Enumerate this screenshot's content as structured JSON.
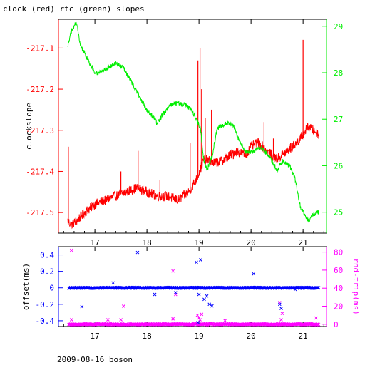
{
  "title": "clock (red) rtc (green) slopes",
  "footer": "2009-08-16 boson",
  "colors": {
    "red": "#ff0000",
    "green": "#00ee00",
    "blue": "#0000ff",
    "magenta": "#ff00ff",
    "axis": "#000000"
  },
  "chart_data": [
    {
      "type": "line",
      "ylabel": "clockslope",
      "xlim": [
        16.3,
        21.45
      ],
      "x_ticks": [
        17,
        18,
        19,
        20,
        21
      ],
      "x_tick_labels": [
        "17",
        "18",
        "19",
        "20",
        "21"
      ],
      "left_axis": {
        "ylim": [
          -217.55,
          -217.03
        ],
        "ticks": [
          -217.1,
          -217.2,
          -217.3,
          -217.4,
          -217.5
        ],
        "tick_labels": [
          "-217.1",
          "-217.2",
          "-217.3",
          "-217.4",
          "-217.5"
        ]
      },
      "right_axis": {
        "ylim": [
          24.55,
          29.15
        ],
        "ticks": [
          25,
          26,
          27,
          28,
          29
        ],
        "tick_labels": [
          "25",
          "26",
          "27",
          "28",
          "29"
        ]
      },
      "series": [
        {
          "name": "clock",
          "color": "#ff0000",
          "axis": "left",
          "x": [
            16.48,
            16.55,
            16.65,
            16.8,
            17.0,
            17.2,
            17.4,
            17.6,
            17.8,
            18.0,
            18.2,
            18.4,
            18.6,
            18.8,
            18.95,
            19.1,
            19.3,
            19.5,
            19.7,
            19.9,
            20.0,
            20.15,
            20.3,
            20.5,
            20.6,
            20.8,
            20.95,
            21.1,
            21.2,
            21.3
          ],
          "y": [
            -217.52,
            -217.53,
            -217.52,
            -217.5,
            -217.48,
            -217.47,
            -217.46,
            -217.45,
            -217.44,
            -217.45,
            -217.46,
            -217.46,
            -217.47,
            -217.45,
            -217.42,
            -217.37,
            -217.38,
            -217.37,
            -217.35,
            -217.36,
            -217.34,
            -217.33,
            -217.35,
            -217.37,
            -217.36,
            -217.34,
            -217.32,
            -217.29,
            -217.3,
            -217.31
          ],
          "spikes": [
            {
              "x": 16.49,
              "y": -217.34
            },
            {
              "x": 17.5,
              "y": -217.4
            },
            {
              "x": 17.83,
              "y": -217.35
            },
            {
              "x": 18.25,
              "y": -217.42
            },
            {
              "x": 18.83,
              "y": -217.33
            },
            {
              "x": 18.98,
              "y": -217.13
            },
            {
              "x": 19.02,
              "y": -217.1
            },
            {
              "x": 19.05,
              "y": -217.2
            },
            {
              "x": 19.12,
              "y": -217.27
            },
            {
              "x": 19.24,
              "y": -217.25
            },
            {
              "x": 19.66,
              "y": -217.37
            },
            {
              "x": 20.25,
              "y": -217.28
            },
            {
              "x": 20.43,
              "y": -217.32
            },
            {
              "x": 20.76,
              "y": -217.33
            },
            {
              "x": 21.0,
              "y": -217.08
            }
          ]
        },
        {
          "name": "rtc",
          "color": "#00ee00",
          "axis": "right",
          "x": [
            16.48,
            16.55,
            16.6,
            16.65,
            16.72,
            16.9,
            17.0,
            17.1,
            17.25,
            17.4,
            17.55,
            17.7,
            17.85,
            18.0,
            18.15,
            18.2,
            18.3,
            18.45,
            18.6,
            18.75,
            18.85,
            18.95,
            19.03,
            19.08,
            19.15,
            19.25,
            19.35,
            19.5,
            19.65,
            19.75,
            19.9,
            20.05,
            20.2,
            20.35,
            20.5,
            20.6,
            20.75,
            20.85,
            20.95,
            21.05,
            21.12,
            21.18,
            21.3
          ],
          "y": [
            28.6,
            28.9,
            29.0,
            29.1,
            28.6,
            28.2,
            28.0,
            28.0,
            28.1,
            28.2,
            28.1,
            27.8,
            27.5,
            27.2,
            27.0,
            26.9,
            27.1,
            27.3,
            27.35,
            27.3,
            27.2,
            27.0,
            26.8,
            26.2,
            25.9,
            26.2,
            26.8,
            26.9,
            26.9,
            26.6,
            26.3,
            26.3,
            26.4,
            26.2,
            25.9,
            26.1,
            26.0,
            25.7,
            25.1,
            24.9,
            24.8,
            24.95,
            25.0
          ]
        }
      ]
    },
    {
      "type": "scatter",
      "ylabel": "offset(ms)",
      "y2label": "rnd-trip(ms)",
      "xlim": [
        16.3,
        21.45
      ],
      "x_ticks": [
        17,
        18,
        19,
        20,
        21
      ],
      "x_tick_labels": [
        "17",
        "18",
        "19",
        "20",
        "21"
      ],
      "left_axis": {
        "ylim": [
          -0.47,
          0.5
        ],
        "ticks": [
          0.4,
          0.2,
          0,
          -0.2,
          -0.4
        ],
        "tick_labels": [
          "0.4",
          "0.2",
          "0",
          "-0.2",
          "-0.4"
        ]
      },
      "right_axis": {
        "ylim": [
          -2.5,
          86
        ],
        "ticks": [
          80,
          60,
          40,
          20,
          0
        ],
        "tick_labels": [
          "80",
          "60",
          "40",
          "20",
          "0"
        ]
      },
      "offset_baseline": 0.0,
      "rtt_baseline": 0.0,
      "offset_outliers": [
        {
          "x": 16.75,
          "y": -0.23
        },
        {
          "x": 17.35,
          "y": 0.06
        },
        {
          "x": 17.82,
          "y": 0.43
        },
        {
          "x": 18.15,
          "y": -0.08
        },
        {
          "x": 18.55,
          "y": -0.06
        },
        {
          "x": 18.95,
          "y": 0.31
        },
        {
          "x": 18.98,
          "y": -0.42
        },
        {
          "x": 19.0,
          "y": -0.08
        },
        {
          "x": 19.03,
          "y": 0.34
        },
        {
          "x": 19.1,
          "y": -0.14
        },
        {
          "x": 19.15,
          "y": -0.1
        },
        {
          "x": 19.2,
          "y": -0.2
        },
        {
          "x": 19.25,
          "y": -0.22
        },
        {
          "x": 20.05,
          "y": 0.17
        },
        {
          "x": 20.55,
          "y": -0.2
        },
        {
          "x": 20.58,
          "y": -0.25
        },
        {
          "x": 20.85,
          "y": -0.02
        }
      ],
      "rtt_outliers": [
        {
          "x": 16.55,
          "y": 82
        },
        {
          "x": 16.55,
          "y": 5
        },
        {
          "x": 17.25,
          "y": 5
        },
        {
          "x": 17.5,
          "y": 5
        },
        {
          "x": 17.55,
          "y": 20
        },
        {
          "x": 18.5,
          "y": 59
        },
        {
          "x": 18.5,
          "y": 6
        },
        {
          "x": 18.55,
          "y": 33
        },
        {
          "x": 18.97,
          "y": 10
        },
        {
          "x": 19.0,
          "y": 7
        },
        {
          "x": 19.02,
          "y": 5
        },
        {
          "x": 19.05,
          "y": 11
        },
        {
          "x": 19.5,
          "y": 4
        },
        {
          "x": 20.55,
          "y": 24
        },
        {
          "x": 20.58,
          "y": 5
        },
        {
          "x": 20.6,
          "y": 12
        },
        {
          "x": 21.25,
          "y": 7
        }
      ]
    }
  ]
}
